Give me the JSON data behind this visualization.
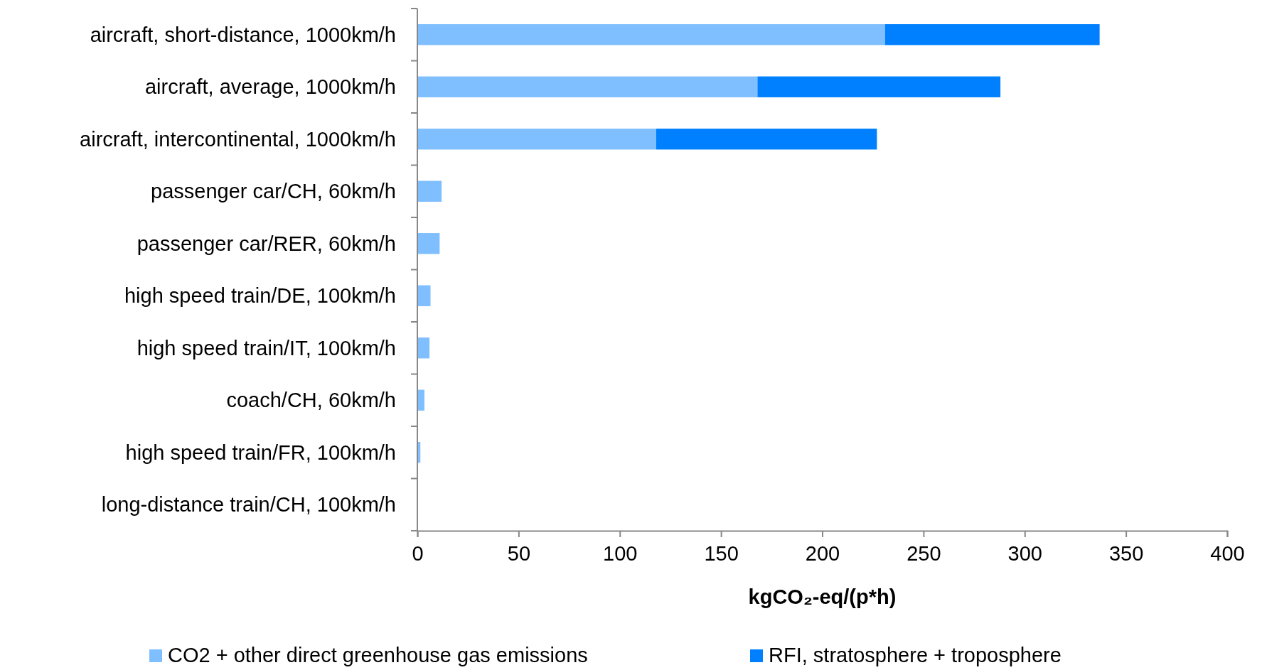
{
  "chart_data": {
    "type": "bar",
    "orientation": "horizontal",
    "stacked": true,
    "categories": [
      "aircraft, short-distance, 1000km/h",
      "aircraft, average, 1000km/h",
      "aircraft, intercontinental, 1000km/h",
      "passenger car/CH, 60km/h",
      "passenger car/RER, 60km/h",
      "high speed train/DE, 100km/h",
      "high speed train/IT, 100km/h",
      "coach/CH, 60km/h",
      "high speed train/FR, 100km/h",
      "long-distance train/CH, 100km/h"
    ],
    "series": [
      {
        "name": "CO2 + other direct greenhouse gas emissions",
        "color": "#7fbfff",
        "values": [
          231,
          168,
          118,
          12,
          11,
          6.5,
          6,
          3.5,
          1.5,
          null
        ]
      },
      {
        "name": "RFI, stratosphere + troposphere",
        "color": "#0080ff",
        "values": [
          106,
          120,
          109,
          0,
          0,
          0,
          0,
          0,
          0,
          0
        ]
      }
    ],
    "xlabel": "kgCO₂-eq/(p*h)",
    "xlim": [
      0,
      400
    ],
    "xticks": [
      0,
      50,
      100,
      150,
      200,
      250,
      300,
      350,
      400
    ],
    "grid": false,
    "legend": "bottom"
  }
}
